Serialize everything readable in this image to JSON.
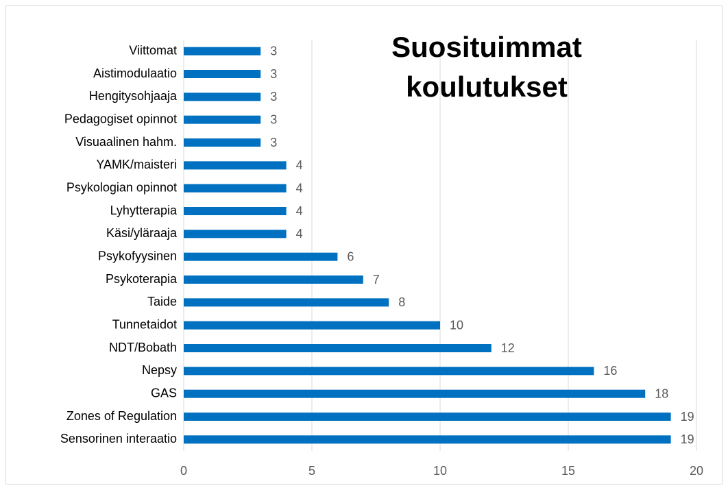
{
  "chart_data": {
    "type": "hbar",
    "title": "Suosituimmat koulutukset",
    "categories": [
      "Viittomat",
      "Aistimodulaatio",
      "Hengitysohjaaja",
      "Pedagogiset opinnot",
      "Visuaalinen hahm.",
      "YAMK/maisteri",
      "Psykologian opinnot",
      "Lyhytterapia",
      "Käsi/yläraaja",
      "Psykofyysinen",
      "Psykoterapia",
      "Taide",
      "Tunnetaidot",
      "NDT/Bobath",
      "Nepsy",
      "GAS",
      "Zones of Regulation",
      "Sensorinen interaatio"
    ],
    "values": [
      3,
      3,
      3,
      3,
      3,
      4,
      4,
      4,
      4,
      6,
      7,
      8,
      10,
      12,
      16,
      18,
      19,
      19
    ],
    "color": "#0070c0",
    "xlim": [
      0,
      20
    ],
    "xticks": [
      0,
      5,
      10,
      15,
      20
    ],
    "grid": true
  }
}
